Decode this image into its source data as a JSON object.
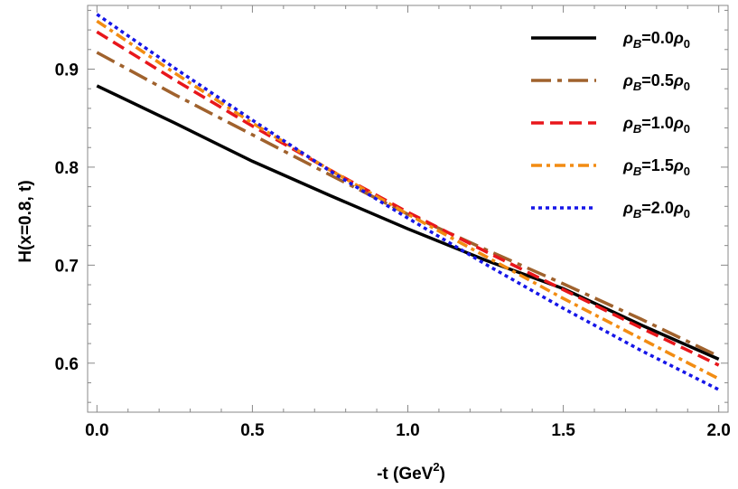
{
  "chart_data": {
    "type": "line",
    "title": "",
    "xlabel": "-t (GeV",
    "xlabel_sup": "2",
    "xlabel_tail": ")",
    "ylabel": "H(x=0.8, t)",
    "xlim": [
      -0.03,
      2.03
    ],
    "ylim": [
      0.55,
      0.965
    ],
    "x_ticks": [
      0.0,
      0.5,
      1.0,
      1.5,
      2.0
    ],
    "x_tick_labels": [
      "0.0",
      "0.5",
      "1.0",
      "1.5",
      "2.0"
    ],
    "y_ticks": [
      0.6,
      0.7,
      0.8,
      0.9
    ],
    "y_tick_labels": [
      "0.6",
      "0.7",
      "0.8",
      "0.9"
    ],
    "grid": false,
    "legend_position": "top-right",
    "series": [
      {
        "name": "ρB=0.0ρ0",
        "legend": {
          "rho": "ρ",
          "sub": "B",
          "mid": "=0.0",
          "rho2": "ρ",
          "sub2": "0"
        },
        "color": "#000000",
        "dash": "solid",
        "x": [
          0.0,
          0.25,
          0.5,
          0.75,
          1.0,
          1.25,
          1.5,
          1.75,
          2.0
        ],
        "y": [
          0.883,
          0.845,
          0.806,
          0.771,
          0.737,
          0.705,
          0.676,
          0.639,
          0.604
        ]
      },
      {
        "name": "ρB=0.5ρ0",
        "legend": {
          "rho": "ρ",
          "sub": "B",
          "mid": "=0.5",
          "rho2": "ρ",
          "sub2": "0"
        },
        "color": "#a0622d",
        "dash": "dashdot",
        "x": [
          0.0,
          0.25,
          0.5,
          0.75,
          1.0,
          1.25,
          1.5,
          1.75,
          2.0
        ],
        "y": [
          0.917,
          0.874,
          0.833,
          0.792,
          0.752,
          0.716,
          0.681,
          0.645,
          0.607
        ]
      },
      {
        "name": "ρB=1.0ρ0",
        "legend": {
          "rho": "ρ",
          "sub": "B",
          "mid": "=1.0",
          "rho2": "ρ",
          "sub2": "0"
        },
        "color": "#e8161b",
        "dash": "dash",
        "x": [
          0.0,
          0.25,
          0.5,
          0.75,
          1.0,
          1.25,
          1.5,
          1.75,
          2.0
        ],
        "y": [
          0.938,
          0.889,
          0.842,
          0.797,
          0.754,
          0.714,
          0.675,
          0.636,
          0.598
        ]
      },
      {
        "name": "ρB=1.5ρ0",
        "legend": {
          "rho": "ρ",
          "sub": "B",
          "mid": "=1.5",
          "rho2": "ρ",
          "sub2": "0"
        },
        "color": "#f28c12",
        "dash": "dashdot2",
        "x": [
          0.0,
          0.25,
          0.5,
          0.75,
          1.0,
          1.25,
          1.5,
          1.75,
          2.0
        ],
        "y": [
          0.949,
          0.896,
          0.845,
          0.797,
          0.752,
          0.709,
          0.666,
          0.625,
          0.584
        ]
      },
      {
        "name": "ρB=2.0ρ0",
        "legend": {
          "rho": "ρ",
          "sub": "B",
          "mid": "=2.0",
          "rho2": "ρ",
          "sub2": "0"
        },
        "color": "#1616e8",
        "dash": "dot",
        "x": [
          0.0,
          0.25,
          0.5,
          0.75,
          1.0,
          1.25,
          1.5,
          1.75,
          2.0
        ],
        "y": [
          0.956,
          0.901,
          0.848,
          0.796,
          0.748,
          0.701,
          0.656,
          0.613,
          0.573
        ]
      }
    ]
  }
}
